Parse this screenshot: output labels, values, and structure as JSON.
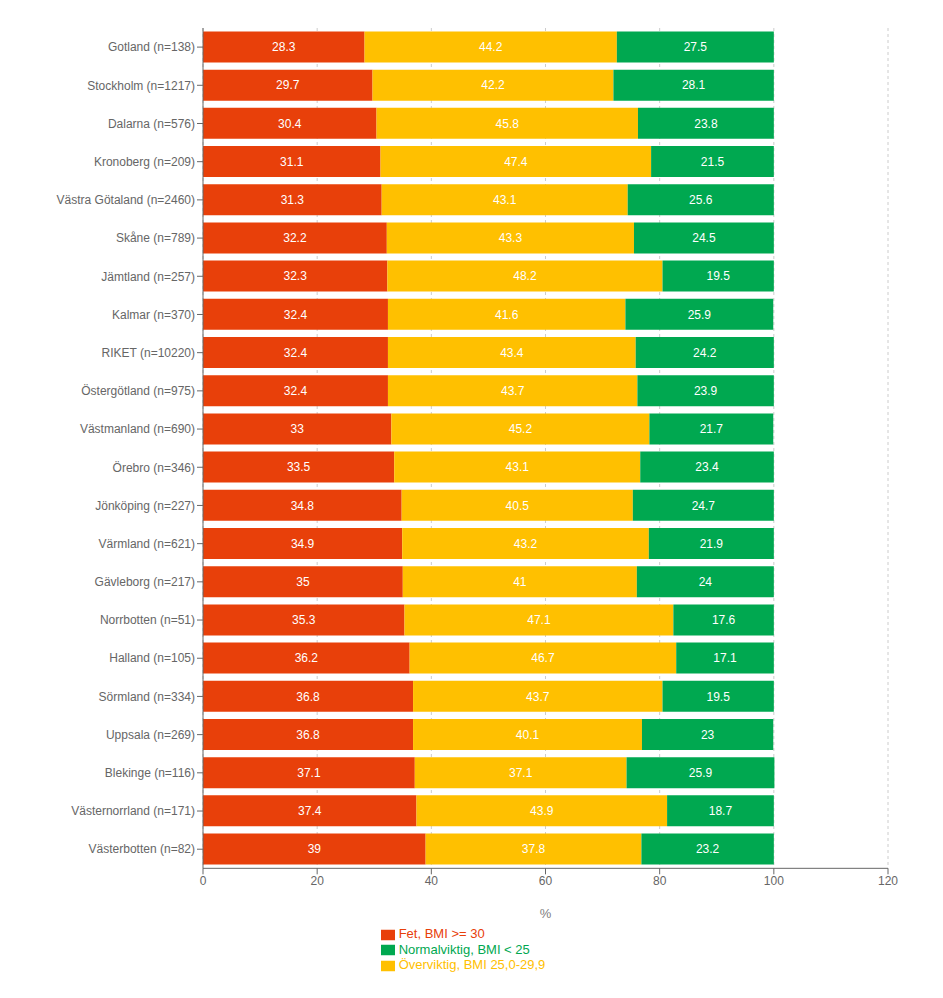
{
  "chart_data": {
    "type": "bar",
    "orientation": "horizontal",
    "stacked": true,
    "data_labels": true,
    "grid": true,
    "legend": "bottom",
    "xlabel": "%",
    "xlim": [
      0,
      120
    ],
    "xticks": [
      0,
      20,
      40,
      60,
      80,
      100,
      120
    ],
    "categories": [
      "Gotland (n=138)",
      "Stockholm (n=1217)",
      "Dalarna (n=576)",
      "Kronoberg (n=209)",
      "Västra Götaland (n=2460)",
      "Skåne (n=789)",
      "Jämtland (n=257)",
      "Kalmar (n=370)",
      "RIKET (n=10220)",
      "Östergötland (n=975)",
      "Västmanland (n=690)",
      "Örebro (n=346)",
      "Jönköping (n=227)",
      "Värmland (n=621)",
      "Gävleborg (n=217)",
      "Norrbotten (n=51)",
      "Halland (n=105)",
      "Sörmland (n=334)",
      "Uppsala (n=269)",
      "Blekinge (n=116)",
      "Västernorrland (n=171)",
      "Västerbotten (n=82)"
    ],
    "series": [
      {
        "name": "Fet, BMI >= 30",
        "color": "#E8400A",
        "values": [
          28.3,
          29.7,
          30.4,
          31.1,
          31.3,
          32.2,
          32.3,
          32.4,
          32.4,
          32.4,
          33,
          33.5,
          34.8,
          34.9,
          35,
          35.3,
          36.2,
          36.8,
          36.8,
          37.1,
          37.4,
          39
        ]
      },
      {
        "name": "Överviktig, BMI 25,0-29,9",
        "color": "#FFC000",
        "values": [
          44.2,
          42.2,
          45.8,
          47.4,
          43.1,
          43.3,
          48.2,
          41.6,
          43.4,
          43.7,
          45.2,
          43.1,
          40.5,
          43.2,
          41,
          47.1,
          46.7,
          43.7,
          40.1,
          37.1,
          43.9,
          37.8
        ]
      },
      {
        "name": "Normalviktig, BMI < 25",
        "color": "#00A850",
        "values": [
          27.5,
          28.1,
          23.8,
          21.5,
          25.6,
          24.5,
          19.5,
          25.9,
          24.2,
          23.9,
          21.7,
          23.4,
          24.7,
          21.9,
          24,
          17.6,
          17.1,
          19.5,
          23,
          25.9,
          18.7,
          23.2
        ]
      }
    ]
  }
}
